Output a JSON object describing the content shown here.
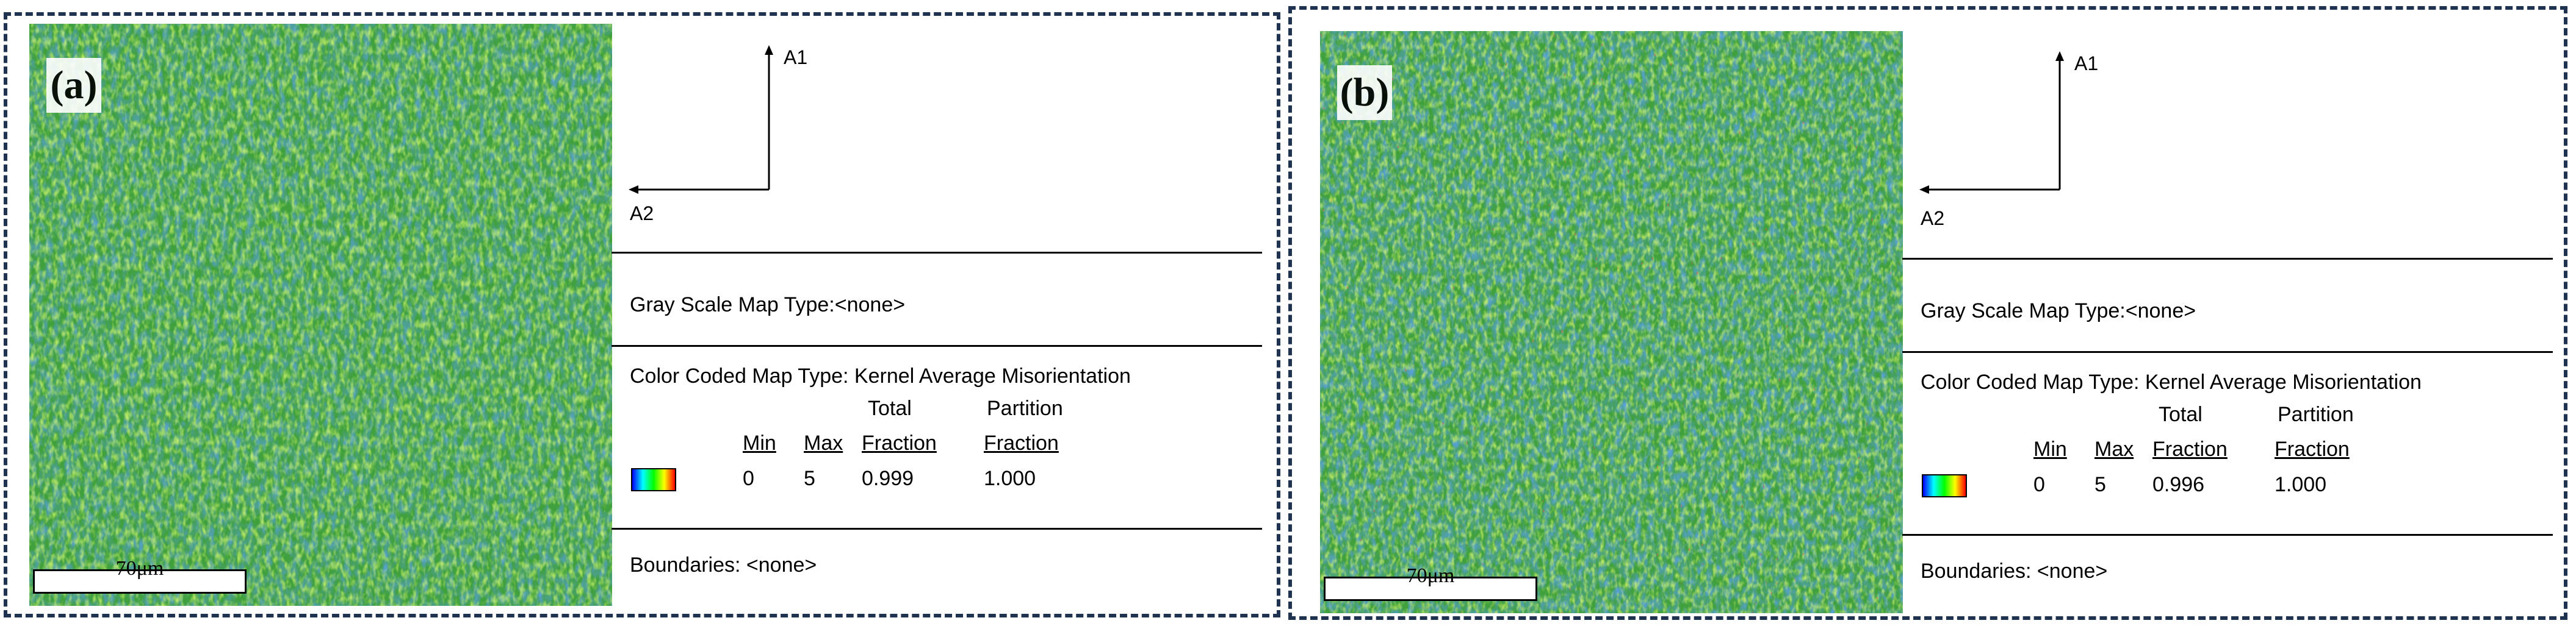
{
  "panels": [
    {
      "label": "(a)",
      "scale_bar": "70μm",
      "axes": {
        "a1": "A1",
        "a2": "A2"
      },
      "gray_scale_map": "Gray Scale Map Type:<none>",
      "color_coded_map": "Color Coded Map Type: Kernel Average Misorientation",
      "table": {
        "total_header": "Total",
        "partition_header": "Partition",
        "min_label": "Min",
        "max_label": "Max",
        "fraction_label": "Fraction",
        "min_value": "0",
        "max_value": "5",
        "total_fraction": "0.999",
        "partition_fraction": "1.000"
      },
      "boundaries": "Boundaries: <none>"
    },
    {
      "label": "(b)",
      "scale_bar": "70μm",
      "axes": {
        "a1": "A1",
        "a2": "A2"
      },
      "gray_scale_map": "Gray Scale Map Type:<none>",
      "color_coded_map": "Color Coded Map Type: Kernel Average Misorientation",
      "table": {
        "total_header": "Total",
        "partition_header": "Partition",
        "min_label": "Min",
        "max_label": "Max",
        "fraction_label": "Fraction",
        "min_value": "0",
        "max_value": "5",
        "total_fraction": "0.996",
        "partition_fraction": "1.000"
      },
      "boundaries": "Boundaries: <none>"
    }
  ],
  "colors": {
    "border": "#1f3350",
    "map_base": "#3f9e3a",
    "low_misorientation": "#1f5fa8",
    "high_misorientation": "#d01818"
  }
}
